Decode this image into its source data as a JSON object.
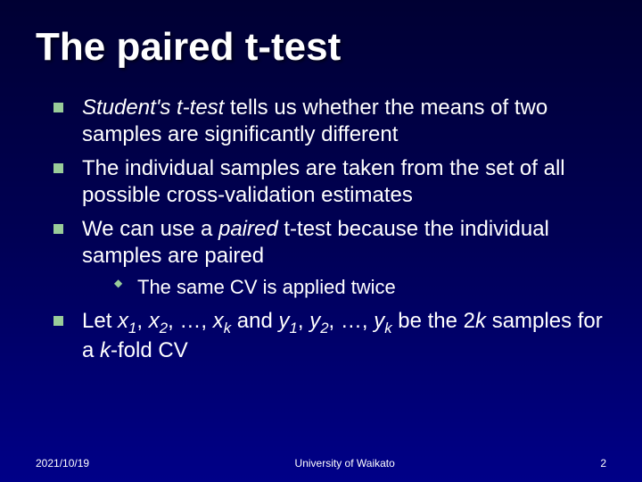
{
  "slide": {
    "background_gradient": [
      "#000033",
      "#000055",
      "#000088"
    ],
    "title": "The paired t-test",
    "title_color": "#ffffff",
    "title_fontsize": 44,
    "bullet_color": "#99cc99",
    "body_fontsize": 24,
    "sub_fontsize": 22,
    "text_color": "#ffffff",
    "bullets": [
      {
        "html": "<span class='italic'>Student's t-test</span> tells us whether the means of two samples are significantly different"
      },
      {
        "html": "The individual samples are taken from the set of all possible cross-validation estimates"
      },
      {
        "html": "We can use a <span class='italic'>paired</span> t-test because the individual samples are paired",
        "sub": [
          {
            "html": "The same CV is applied twice"
          }
        ]
      },
      {
        "html": "Let <span class='sub-var'>x<sub>1</sub></span>, <span class='sub-var'>x<sub>2</sub></span>, …, <span class='sub-var'>x<sub>k</sub></span> and <span class='sub-var'>y<sub>1</sub></span>, <span class='sub-var'>y<sub>2</sub></span>, …, <span class='sub-var'>y<sub>k</sub></span> be the 2<span class='italic'>k</span> samples for a <span class='italic'>k</span>-fold CV"
      }
    ]
  },
  "footer": {
    "date": "2021/10/19",
    "affiliation": "University of Waikato",
    "page_number": "2",
    "fontsize": 12
  }
}
